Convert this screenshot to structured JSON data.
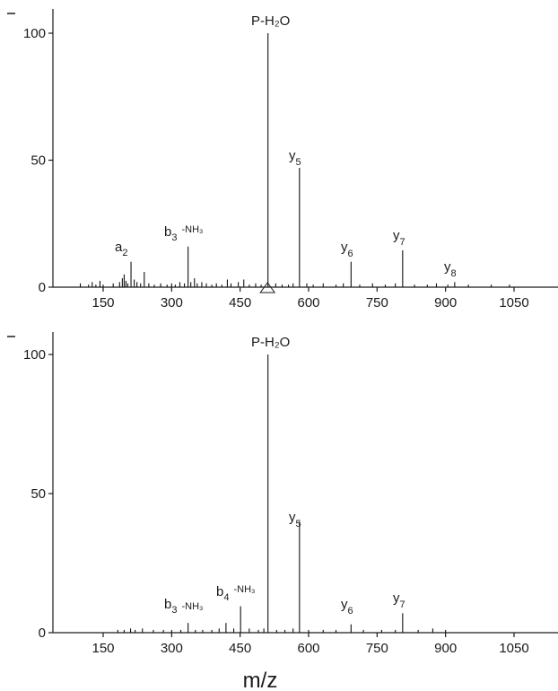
{
  "chart_data": [
    {
      "type": "bar",
      "panel": "top",
      "xlim": [
        60,
        1240
      ],
      "ylim": [
        0,
        110
      ],
      "xticks": [
        150,
        300,
        450,
        600,
        750,
        900,
        1050
      ],
      "yticks": [
        0,
        50,
        100
      ],
      "grid": false,
      "precursor_marker_mz": 510,
      "peaks": [
        {
          "mz": 100,
          "y": 1.5
        },
        {
          "mz": 118,
          "y": 1.0
        },
        {
          "mz": 126,
          "y": 2.0
        },
        {
          "mz": 134,
          "y": 1.0
        },
        {
          "mz": 143,
          "y": 2.5
        },
        {
          "mz": 150,
          "y": 1.0
        },
        {
          "mz": 172,
          "y": 1.5
        },
        {
          "mz": 186,
          "y": 2.0
        },
        {
          "mz": 192,
          "y": 3.5
        },
        {
          "mz": 196,
          "y": 5.0
        },
        {
          "mz": 200,
          "y": 2.5
        },
        {
          "mz": 204,
          "y": 1.5
        },
        {
          "mz": 211,
          "y": 10.0
        },
        {
          "mz": 218,
          "y": 3.0
        },
        {
          "mz": 224,
          "y": 2.0
        },
        {
          "mz": 232,
          "y": 1.5
        },
        {
          "mz": 240,
          "y": 6.0
        },
        {
          "mz": 250,
          "y": 1.5
        },
        {
          "mz": 262,
          "y": 1.0
        },
        {
          "mz": 276,
          "y": 1.5
        },
        {
          "mz": 290,
          "y": 1.0
        },
        {
          "mz": 300,
          "y": 1.5
        },
        {
          "mz": 308,
          "y": 1.0
        },
        {
          "mz": 318,
          "y": 2.0
        },
        {
          "mz": 328,
          "y": 1.5
        },
        {
          "mz": 336,
          "y": 16.0
        },
        {
          "mz": 342,
          "y": 2.0
        },
        {
          "mz": 350,
          "y": 3.5
        },
        {
          "mz": 356,
          "y": 1.5
        },
        {
          "mz": 366,
          "y": 2.0
        },
        {
          "mz": 376,
          "y": 1.5
        },
        {
          "mz": 388,
          "y": 1.0
        },
        {
          "mz": 398,
          "y": 1.5
        },
        {
          "mz": 410,
          "y": 1.0
        },
        {
          "mz": 422,
          "y": 3.0
        },
        {
          "mz": 430,
          "y": 1.5
        },
        {
          "mz": 446,
          "y": 2.0
        },
        {
          "mz": 458,
          "y": 3.0
        },
        {
          "mz": 470,
          "y": 1.0
        },
        {
          "mz": 484,
          "y": 1.5
        },
        {
          "mz": 496,
          "y": 1.0
        },
        {
          "mz": 511,
          "y": 100,
          "label": "P-H₂O"
        },
        {
          "mz": 528,
          "y": 1.5
        },
        {
          "mz": 542,
          "y": 1.0
        },
        {
          "mz": 556,
          "y": 1.0
        },
        {
          "mz": 566,
          "y": 1.5
        },
        {
          "mz": 580,
          "y": 47,
          "label": "y5"
        },
        {
          "mz": 596,
          "y": 1.5
        },
        {
          "mz": 610,
          "y": 1.0
        },
        {
          "mz": 632,
          "y": 1.5
        },
        {
          "mz": 660,
          "y": 1.0
        },
        {
          "mz": 676,
          "y": 1.5
        },
        {
          "mz": 693,
          "y": 10.0,
          "label": "y6"
        },
        {
          "mz": 712,
          "y": 1.0
        },
        {
          "mz": 740,
          "y": 1.5
        },
        {
          "mz": 768,
          "y": 1.0
        },
        {
          "mz": 790,
          "y": 1.5
        },
        {
          "mz": 806,
          "y": 14.5,
          "label": "y7"
        },
        {
          "mz": 832,
          "y": 1.0
        },
        {
          "mz": 860,
          "y": 1.0
        },
        {
          "mz": 880,
          "y": 1.5
        },
        {
          "mz": 905,
          "y": 1.0
        },
        {
          "mz": 920,
          "y": 2.0
        },
        {
          "mz": 950,
          "y": 1.0
        },
        {
          "mz": 1000,
          "y": 1.0
        },
        {
          "mz": 1040,
          "y": 1.0
        }
      ]
    },
    {
      "type": "bar",
      "panel": "bottom",
      "xlim": [
        60,
        1240
      ],
      "ylim": [
        0,
        110
      ],
      "xticks": [
        150,
        300,
        450,
        600,
        750,
        900,
        1050
      ],
      "yticks": [
        0,
        50,
        100
      ],
      "grid": false,
      "peaks": [
        {
          "mz": 182,
          "y": 1.0
        },
        {
          "mz": 196,
          "y": 1.0
        },
        {
          "mz": 210,
          "y": 1.5
        },
        {
          "mz": 220,
          "y": 1.0
        },
        {
          "mz": 236,
          "y": 1.5
        },
        {
          "mz": 260,
          "y": 1.0
        },
        {
          "mz": 282,
          "y": 1.0
        },
        {
          "mz": 300,
          "y": 1.0
        },
        {
          "mz": 320,
          "y": 1.0
        },
        {
          "mz": 336,
          "y": 3.5
        },
        {
          "mz": 352,
          "y": 1.0
        },
        {
          "mz": 368,
          "y": 1.0
        },
        {
          "mz": 388,
          "y": 1.0
        },
        {
          "mz": 404,
          "y": 1.5
        },
        {
          "mz": 419,
          "y": 3.5
        },
        {
          "mz": 436,
          "y": 1.5
        },
        {
          "mz": 451,
          "y": 9.5
        },
        {
          "mz": 470,
          "y": 1.5
        },
        {
          "mz": 490,
          "y": 1.0
        },
        {
          "mz": 502,
          "y": 1.5
        },
        {
          "mz": 511,
          "y": 100,
          "label": "P-H₂O"
        },
        {
          "mz": 530,
          "y": 1.0
        },
        {
          "mz": 548,
          "y": 1.0
        },
        {
          "mz": 566,
          "y": 1.5
        },
        {
          "mz": 580,
          "y": 40,
          "label": "y5"
        },
        {
          "mz": 600,
          "y": 1.0
        },
        {
          "mz": 632,
          "y": 1.0
        },
        {
          "mz": 660,
          "y": 1.0
        },
        {
          "mz": 693,
          "y": 3.0,
          "label": "y6"
        },
        {
          "mz": 720,
          "y": 1.0
        },
        {
          "mz": 760,
          "y": 1.0
        },
        {
          "mz": 790,
          "y": 1.0
        },
        {
          "mz": 806,
          "y": 7.0,
          "label": "y7"
        },
        {
          "mz": 840,
          "y": 1.0
        },
        {
          "mz": 872,
          "y": 1.5
        },
        {
          "mz": 900,
          "y": 1.0
        }
      ]
    }
  ],
  "labels": {
    "top": {
      "a2": "a",
      "a2_sub": "2",
      "b3": "b",
      "b3_sub": "3",
      "b3_suffix": "-NH₃",
      "p": "P-H₂O",
      "y5": "y",
      "y5_sub": "5",
      "y6": "y",
      "y6_sub": "6",
      "y7": "y",
      "y7_sub": "7",
      "y8": "y",
      "y8_sub": "8"
    },
    "bottom": {
      "b3": "b",
      "b3_sub": "3",
      "b3_suffix": "-NH₃",
      "b4": "b",
      "b4_sub": "4",
      "b4_suffix": "-NH₃",
      "p": "P-H₂O",
      "y5": "y",
      "y5_sub": "5",
      "y6": "y",
      "y6_sub": "6",
      "y7": "y",
      "y7_sub": "7"
    }
  },
  "xlabel": "m/z"
}
